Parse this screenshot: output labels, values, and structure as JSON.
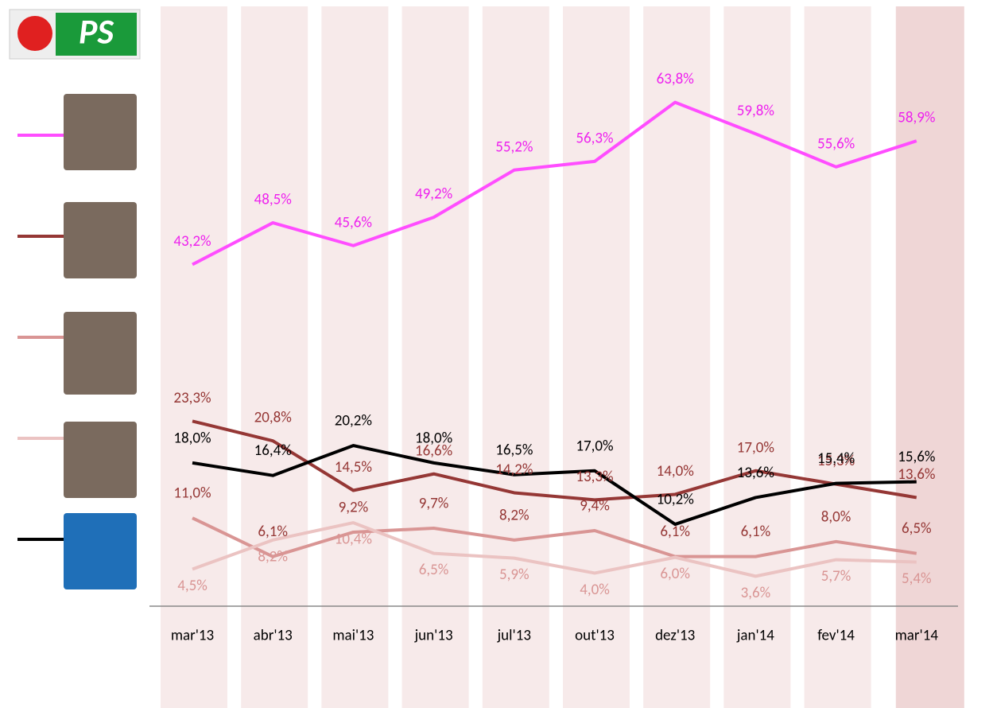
{
  "logo": {
    "text": "PS"
  },
  "chart_data": {
    "type": "line",
    "categories": [
      "mar'13",
      "abr'13",
      "mai'13",
      "jun'13",
      "jul'13",
      "out'13",
      "dez'13",
      "jan'14",
      "fev'14",
      "mar'14"
    ],
    "ylim": [
      0,
      76.8
    ],
    "series": [
      {
        "color": "#ff4dff",
        "label_color": "#ee22ee",
        "values": [
          43.2,
          48.5,
          45.6,
          49.2,
          55.2,
          56.3,
          63.8,
          59.8,
          55.6,
          58.9
        ],
        "value_labels": [
          "43,2%",
          "48,5%",
          "45,6%",
          "49,2%",
          "55,2%",
          "56,3%",
          "63,8%",
          "59,8%",
          "55,6%",
          "58,9%"
        ]
      },
      {
        "color": "#953735",
        "label_color": "#953735",
        "values": [
          23.3,
          20.8,
          14.5,
          16.6,
          14.2,
          13.3,
          14.0,
          17.0,
          15.3,
          13.6
        ],
        "value_labels": [
          "23,3%",
          "20,8%",
          "14,5%",
          "16,6%",
          "14,2%",
          "13,3%",
          "14,0%",
          "17,0%",
          "15,3%",
          "13,6%"
        ]
      },
      {
        "color": "#d99594",
        "label_color": "#953735",
        "values": [
          11.0,
          6.1,
          9.2,
          9.7,
          8.2,
          9.4,
          6.1,
          6.1,
          8.0,
          6.5
        ],
        "value_labels": [
          "11,0%",
          "6,1%",
          "9,2%",
          "9,7%",
          "8,2%",
          "9,4%",
          "6,1%",
          "6,1%",
          "8,0%",
          "6,5%"
        ]
      },
      {
        "color": "#ebc3c2",
        "label_color": "#d99594",
        "values": [
          4.5,
          8.2,
          10.4,
          6.5,
          5.9,
          4.0,
          6.0,
          3.6,
          5.7,
          5.4
        ],
        "value_labels": [
          "4,5%",
          "8,2%",
          "10,4%",
          "6,5%",
          "5,9%",
          "4,0%",
          "6,0%",
          "3,6%",
          "5,7%",
          "5,4%"
        ]
      },
      {
        "color": "#000000",
        "label_color": "#000000",
        "values": [
          18.0,
          16.4,
          20.2,
          18.0,
          16.5,
          17.0,
          10.2,
          13.6,
          15.4,
          15.6
        ],
        "value_labels": [
          "18,0%",
          "16,4%",
          "20,2%",
          "18,0%",
          "16,5%",
          "17,0%",
          "10,2%",
          "13,6%",
          "15,4%",
          "15,6%"
        ]
      }
    ]
  }
}
